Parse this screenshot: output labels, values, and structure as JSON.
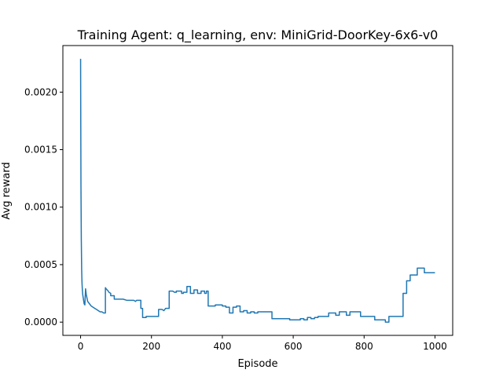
{
  "chart_data": {
    "type": "line",
    "title": "Training Agent: q_learning, env: MiniGrid-DoorKey-6x6-v0",
    "xlabel": "Episode",
    "ylabel": "Avg reward",
    "xlim": [
      -50,
      1050
    ],
    "ylim": [
      -0.000115,
      0.002405
    ],
    "xticks": [
      0,
      200,
      400,
      600,
      800,
      1000
    ],
    "yticks": [
      0.0,
      0.0005,
      0.001,
      0.0015,
      0.002
    ],
    "ytick_labels": [
      "0.0000",
      "0.0005",
      "0.0010",
      "0.0015",
      "0.0020"
    ],
    "grid": false,
    "color": "#1f77b4",
    "series": [
      {
        "x": [
          0,
          1,
          2,
          3,
          4,
          5,
          6,
          8,
          10,
          12,
          14,
          16,
          18,
          20,
          25,
          30,
          35,
          40,
          45,
          50,
          55,
          60,
          65,
          70,
          70,
          72,
          75,
          78,
          80,
          85,
          85,
          90,
          95,
          95,
          100,
          110,
          120,
          130,
          140,
          150,
          155,
          158,
          160,
          170,
          170,
          175,
          175,
          185,
          185,
          220,
          220,
          230,
          235,
          240,
          240,
          245,
          250,
          250,
          260,
          265,
          270,
          270,
          285,
          285,
          290,
          290,
          300,
          300,
          310,
          310,
          315,
          320,
          320,
          330,
          330,
          335,
          340,
          340,
          345,
          350,
          350,
          355,
          355,
          360,
          360,
          380,
          380,
          400,
          400,
          410,
          410,
          420,
          420,
          430,
          430,
          440,
          440,
          450,
          450,
          460,
          460,
          470,
          470,
          480,
          480,
          490,
          490,
          500,
          500,
          520,
          520,
          540,
          540,
          570,
          570,
          590,
          590,
          600,
          600,
          610,
          610,
          620,
          620,
          630,
          630,
          640,
          640,
          650,
          650,
          660,
          660,
          670,
          670,
          700,
          700,
          720,
          720,
          730,
          730,
          750,
          750,
          760,
          760,
          790,
          790,
          830,
          830,
          840,
          840,
          860,
          860,
          870,
          870,
          910,
          910,
          920,
          920,
          930,
          930,
          940,
          940,
          950,
          950,
          960,
          960,
          970,
          970,
          980,
          980,
          1000
        ],
        "y": [
          0.00229,
          0.0012,
          0.00072,
          0.00046,
          0.00034,
          0.00028,
          0.00024,
          0.0002,
          0.00016,
          0.00015,
          0.00029,
          0.00024,
          0.00021,
          0.00018,
          0.00016,
          0.00014,
          0.00013,
          0.00012,
          0.00011,
          0.0001,
          9e-05,
          9e-05,
          8e-05,
          8e-05,
          0.0003,
          0.00029,
          0.00028,
          0.00027,
          0.00026,
          0.00025,
          0.00023,
          0.00023,
          0.00023,
          0.0002,
          0.0002,
          0.0002,
          0.0002,
          0.00019,
          0.00019,
          0.00019,
          0.00018,
          0.00019,
          0.00019,
          0.00019,
          0.00012,
          0.00012,
          4e-05,
          4e-05,
          5e-05,
          5e-05,
          0.00011,
          0.00011,
          0.0001,
          0.00012,
          0.00012,
          0.00012,
          0.00012,
          0.00027,
          0.00027,
          0.00026,
          0.00026,
          0.00027,
          0.00027,
          0.00025,
          0.00025,
          0.00026,
          0.00026,
          0.00031,
          0.00031,
          0.00025,
          0.00025,
          0.00025,
          0.00028,
          0.00028,
          0.00025,
          0.00025,
          0.00025,
          0.00027,
          0.00027,
          0.00027,
          0.00025,
          0.00025,
          0.00027,
          0.00027,
          0.00014,
          0.00014,
          0.00015,
          0.00015,
          0.00014,
          0.00014,
          0.00013,
          0.00013,
          8e-05,
          8e-05,
          0.00013,
          0.00013,
          0.00014,
          0.00014,
          9e-05,
          9e-05,
          0.0001,
          0.0001,
          8e-05,
          8e-05,
          9e-05,
          9e-05,
          8e-05,
          8e-05,
          9e-05,
          9e-05,
          9e-05,
          9e-05,
          3e-05,
          3e-05,
          3e-05,
          3e-05,
          2e-05,
          2e-05,
          2e-05,
          2e-05,
          2e-05,
          2e-05,
          3e-05,
          3e-05,
          2e-05,
          2e-05,
          4e-05,
          4e-05,
          3e-05,
          3e-05,
          4e-05,
          4e-05,
          5e-05,
          5e-05,
          8e-05,
          8e-05,
          6e-05,
          6e-05,
          9e-05,
          9e-05,
          6e-05,
          6e-05,
          9e-05,
          9e-05,
          5e-05,
          5e-05,
          2e-05,
          2e-05,
          2e-05,
          2e-05,
          0.0,
          0.0,
          5e-05,
          5e-05,
          0.00025,
          0.00025,
          0.00036,
          0.00036,
          0.00041,
          0.00041,
          0.00041,
          0.00041,
          0.00047,
          0.00047,
          0.00047,
          0.00047,
          0.00043,
          0.00043,
          0.00043,
          0.00043
        ]
      }
    ]
  }
}
